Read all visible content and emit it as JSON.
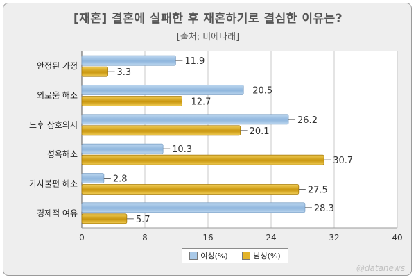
{
  "chart_data": {
    "type": "bar",
    "orientation": "horizontal",
    "title": "[재혼] 결혼에 실패한 후 재혼하기로 결심한 이유는?",
    "subtitle": "[출처: 비에나래]",
    "categories": [
      "안정된 가정",
      "외로움 해소",
      "노후 상호의지",
      "성욕해소",
      "가사불편 해소",
      "경제적 여유"
    ],
    "series": [
      {
        "name": "여성(%)",
        "values": [
          11.9,
          20.5,
          26.2,
          10.3,
          2.8,
          28.3
        ],
        "color": "#a9c9e8"
      },
      {
        "name": "남성(%)",
        "values": [
          3.3,
          12.7,
          20.1,
          30.7,
          27.5,
          5.7
        ],
        "color": "#e2b32a"
      }
    ],
    "xlim": [
      0,
      40
    ],
    "xticks": [
      0,
      8,
      16,
      24,
      32,
      40
    ],
    "grid": true,
    "legend_position": "bottom"
  },
  "watermark": "@datanews"
}
